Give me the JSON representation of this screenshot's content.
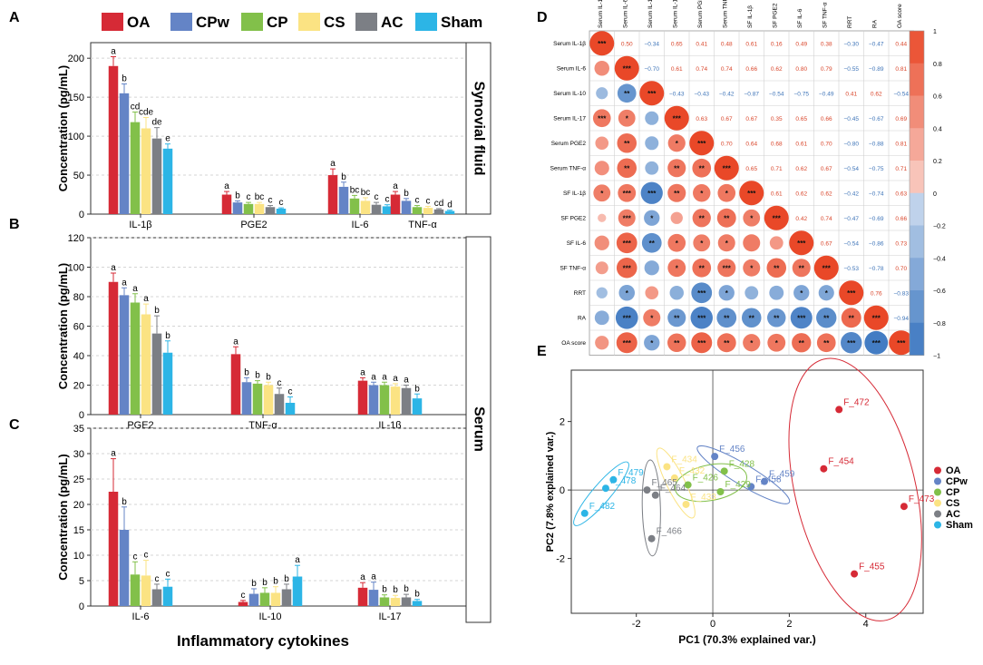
{
  "figure": {
    "panel_labels": [
      "A",
      "B",
      "C",
      "D",
      "E"
    ],
    "groups": [
      "OA",
      "CPw",
      "CP",
      "CS",
      "AC",
      "Sham"
    ],
    "group_colors": [
      "#d62a36",
      "#6484c6",
      "#82c04a",
      "#fbe383",
      "#7c7f85",
      "#2cb5e6"
    ],
    "x_caption": "Inflammatory cytokines"
  },
  "chart_data": [
    {
      "id": "A",
      "type": "bar",
      "side_label": "Synovial fluid",
      "ylabel": "Concentration (pg/mL)",
      "ylim": [
        0,
        220
      ],
      "yticks": [
        0,
        50,
        100,
        150,
        200
      ],
      "categories": [
        "IL-1β",
        "PGE2",
        "IL-6",
        "TNF-α"
      ],
      "series": [
        {
          "name": "OA",
          "values": [
            190,
            25,
            50,
            25
          ],
          "errors": [
            12,
            4,
            8,
            4
          ],
          "letters": [
            "a",
            "a",
            "a",
            "a"
          ]
        },
        {
          "name": "CPw",
          "values": [
            155,
            15,
            35,
            17
          ],
          "errors": [
            12,
            2,
            6,
            3
          ],
          "letters": [
            "b",
            "b",
            "b",
            "b"
          ]
        },
        {
          "name": "CP",
          "values": [
            118,
            13,
            20,
            9
          ],
          "errors": [
            13,
            2,
            4,
            2
          ],
          "letters": [
            "cd",
            "c",
            "bc",
            "c"
          ]
        },
        {
          "name": "CS",
          "values": [
            110,
            13,
            17,
            8
          ],
          "errors": [
            14,
            2,
            4,
            2
          ],
          "letters": [
            "cde",
            "bc",
            "bc",
            "c"
          ]
        },
        {
          "name": "AC",
          "values": [
            97,
            9,
            12,
            6
          ],
          "errors": [
            14,
            2,
            3,
            1
          ],
          "letters": [
            "de",
            "c",
            "c",
            "cd"
          ]
        },
        {
          "name": "Sham",
          "values": [
            84,
            7,
            10,
            4
          ],
          "errors": [
            6,
            1,
            2,
            1
          ],
          "letters": [
            "e",
            "c",
            "c",
            "d"
          ]
        }
      ]
    },
    {
      "id": "B",
      "type": "bar",
      "side_label": "Serum",
      "ylabel": "Concentration (pg/mL)",
      "ylim": [
        0,
        120
      ],
      "yticks": [
        0,
        20,
        40,
        60,
        80,
        100,
        120
      ],
      "categories": [
        "PGE2",
        "TNF-α",
        "IL-1β"
      ],
      "series": [
        {
          "name": "OA",
          "values": [
            90,
            41,
            23
          ],
          "errors": [
            6,
            5,
            2
          ],
          "letters": [
            "a",
            "a",
            "a"
          ]
        },
        {
          "name": "CPw",
          "values": [
            81,
            22,
            20
          ],
          "errors": [
            5,
            3,
            2
          ],
          "letters": [
            "a",
            "b",
            "a"
          ]
        },
        {
          "name": "CP",
          "values": [
            76,
            21,
            20
          ],
          "errors": [
            6,
            2,
            2
          ],
          "letters": [
            "a",
            "b",
            "a"
          ]
        },
        {
          "name": "CS",
          "values": [
            68,
            20,
            19
          ],
          "errors": [
            7,
            2,
            2
          ],
          "letters": [
            "a",
            "b",
            "a"
          ]
        },
        {
          "name": "AC",
          "values": [
            55,
            14,
            18
          ],
          "errors": [
            12,
            4,
            2
          ],
          "letters": [
            "b",
            "c",
            "a"
          ]
        },
        {
          "name": "Sham",
          "values": [
            42,
            8,
            11
          ],
          "errors": [
            8,
            4,
            3
          ],
          "letters": [
            "b",
            "c",
            "b"
          ]
        }
      ]
    },
    {
      "id": "C",
      "type": "bar",
      "ylabel": "Concentration (pg/mL)",
      "ylim": [
        0,
        35
      ],
      "yticks": [
        0,
        5,
        10,
        15,
        20,
        25,
        30,
        35
      ],
      "categories": [
        "IL-6",
        "IL-10",
        "IL-17"
      ],
      "series": [
        {
          "name": "OA",
          "values": [
            22.5,
            0.8,
            3.6
          ],
          "errors": [
            6.5,
            0.3,
            1.0
          ],
          "letters": [
            "a",
            "c",
            "a"
          ]
        },
        {
          "name": "CPw",
          "values": [
            15,
            2.4,
            3.2
          ],
          "errors": [
            4.5,
            1.0,
            1.5
          ],
          "letters": [
            "b",
            "b",
            "a"
          ]
        },
        {
          "name": "CP",
          "values": [
            6.2,
            2.6,
            1.7
          ],
          "errors": [
            2.5,
            1.0,
            0.5
          ],
          "letters": [
            "c",
            "b",
            "b"
          ]
        },
        {
          "name": "CS",
          "values": [
            6.0,
            2.6,
            1.6
          ],
          "errors": [
            3.0,
            1.2,
            0.5
          ],
          "letters": [
            "c",
            "b",
            "b"
          ]
        },
        {
          "name": "AC",
          "values": [
            3.3,
            3.3,
            1.7
          ],
          "errors": [
            1.0,
            1.0,
            0.6
          ],
          "letters": [
            "c",
            "b",
            "b"
          ]
        },
        {
          "name": "Sham",
          "values": [
            3.8,
            5.8,
            1.0
          ],
          "errors": [
            1.5,
            2.2,
            0.3
          ],
          "letters": [
            "c",
            "a",
            "b"
          ]
        }
      ]
    },
    {
      "id": "D",
      "type": "heatmap",
      "labels": [
        "Serum IL-1β",
        "Serum IL-6",
        "Serum IL-10",
        "Serum IL-17",
        "Serum PGE2",
        "Serum TNF-α",
        "SF IL-1β",
        "SF PGE2",
        "SF IL-6",
        "SF TNF-α",
        "RRT",
        "RA",
        "OA score"
      ],
      "upper": [
        [
          null,
          "0.50",
          "−0.34",
          "0.65",
          "0.41",
          "0.48",
          "0.61",
          "0.16",
          "0.49",
          "0.38",
          "−0.30",
          "−0.47",
          "0.44"
        ],
        [
          null,
          null,
          "−0.70",
          "0.61",
          "0.74",
          "0.74",
          "0.66",
          "0.62",
          "0.80",
          "0.79",
          "−0.55",
          "−0.89",
          "0.81"
        ],
        [
          null,
          null,
          null,
          "−0.43",
          "−0.43",
          "−0.42",
          "−0.87",
          "−0.54",
          "−0.75",
          "−0.49",
          "0.41",
          "0.62",
          "−0.54"
        ],
        [
          null,
          null,
          null,
          null,
          "0.63",
          "0.67",
          "0.67",
          "0.35",
          "0.65",
          "0.66",
          "−0.45",
          "−0.67",
          "0.69"
        ],
        [
          null,
          null,
          null,
          null,
          null,
          "0.70",
          "0.64",
          "0.68",
          "0.61",
          "0.70",
          "−0.80",
          "−0.88",
          "0.81"
        ],
        [
          null,
          null,
          null,
          null,
          null,
          null,
          "0.65",
          "0.71",
          "0.62",
          "0.67",
          "−0.54",
          "−0.75",
          "0.71"
        ],
        [
          null,
          null,
          null,
          null,
          null,
          null,
          null,
          "0.61",
          "0.62",
          "0.62",
          "−0.42",
          "−0.74",
          "0.63"
        ],
        [
          null,
          null,
          null,
          null,
          null,
          null,
          null,
          null,
          "0.42",
          "0.74",
          "−0.47",
          "−0.69",
          "0.66"
        ],
        [
          null,
          null,
          null,
          null,
          null,
          null,
          null,
          null,
          null,
          "0.67",
          "−0.54",
          "−0.86",
          "0.73"
        ],
        [
          null,
          null,
          null,
          null,
          null,
          null,
          null,
          null,
          null,
          null,
          "−0.53",
          "−0.78",
          "0.70"
        ],
        [
          null,
          null,
          null,
          null,
          null,
          null,
          null,
          null,
          null,
          null,
          null,
          "0.76",
          "−0.83"
        ],
        [
          null,
          null,
          null,
          null,
          null,
          null,
          null,
          null,
          null,
          null,
          null,
          null,
          "−0.94"
        ],
        [
          null,
          null,
          null,
          null,
          null,
          null,
          null,
          null,
          null,
          null,
          null,
          null,
          null
        ]
      ],
      "lower_sig": [
        [
          "***",
          "",
          "",
          "",
          "",
          "",
          "",
          "",
          "",
          "",
          "",
          "",
          ""
        ],
        [
          "",
          "***",
          "",
          "",
          "",
          "",
          "",
          "",
          "",
          "",
          "",
          "",
          ""
        ],
        [
          "",
          "**",
          "***",
          "",
          "",
          "",
          "",
          "",
          "",
          "",
          "",
          "",
          ""
        ],
        [
          "***",
          "*",
          "",
          "***",
          "",
          "",
          "",
          "",
          "",
          "",
          "",
          "",
          ""
        ],
        [
          "",
          "**",
          "",
          "*",
          "***",
          "",
          "",
          "",
          "",
          "",
          "",
          "",
          ""
        ],
        [
          "",
          "**",
          "",
          "**",
          "**",
          "***",
          "",
          "",
          "",
          "",
          "",
          "",
          ""
        ],
        [
          "*",
          "***",
          "***",
          "**",
          "*",
          "*",
          "***",
          "",
          "",
          "",
          "",
          "",
          ""
        ],
        [
          "",
          "***",
          "*",
          "",
          "**",
          "**",
          "*",
          "***",
          "",
          "",
          "",
          "",
          ""
        ],
        [
          "",
          "***",
          "**",
          "*",
          "*",
          "*",
          "",
          "",
          "***",
          "",
          "",
          "",
          ""
        ],
        [
          "",
          "***",
          "",
          "*",
          "**",
          "***",
          "*",
          "**",
          "**",
          "***",
          "",
          "",
          ""
        ],
        [
          "",
          "*",
          "",
          "",
          "***",
          "*",
          "",
          "",
          "*",
          "*",
          "***",
          "",
          ""
        ],
        [
          "",
          "***",
          "*",
          "**",
          "***",
          "**",
          "**",
          "**",
          "***",
          "**",
          "**",
          "***",
          ""
        ],
        [
          "",
          "***",
          "*",
          "**",
          "***",
          "**",
          "*",
          "*",
          "**",
          "**",
          "***",
          "***",
          "***"
        ]
      ],
      "colorbar_ticks": [
        "1",
        "0.8",
        "0.6",
        "0.4",
        "0.2",
        "0",
        "−0.2",
        "−0.4",
        "−0.6",
        "−0.8",
        "−1"
      ]
    },
    {
      "id": "E",
      "type": "scatter",
      "xlabel": "PC1 (70.3% explained var.)",
      "ylabel": "PC2 (7.8% explained var.)",
      "xlim": [
        -3.7,
        5.5
      ],
      "ylim": [
        -3.6,
        3.5
      ],
      "xticks": [
        -2,
        0,
        2,
        4
      ],
      "yticks": [
        -2,
        0,
        2
      ],
      "points": [
        {
          "group": "OA",
          "label": "F_472",
          "x": 3.3,
          "y": 2.35
        },
        {
          "group": "OA",
          "label": "F_454",
          "x": 2.9,
          "y": 0.62
        },
        {
          "group": "OA",
          "label": "F_473",
          "x": 5.0,
          "y": -0.48
        },
        {
          "group": "OA",
          "label": "F_455",
          "x": 3.7,
          "y": -2.45
        },
        {
          "group": "CPw",
          "label": "F_456",
          "x": 0.05,
          "y": 0.98
        },
        {
          "group": "CPw",
          "label": "F_459",
          "x": 1.35,
          "y": 0.25
        },
        {
          "group": "CPw",
          "label": "F_458",
          "x": 1.0,
          "y": 0.1
        },
        {
          "group": "CP",
          "label": "F_428",
          "x": 0.3,
          "y": 0.55
        },
        {
          "group": "CP",
          "label": "F_426",
          "x": -0.65,
          "y": 0.15
        },
        {
          "group": "CP",
          "label": "F_429",
          "x": 0.2,
          "y": -0.05
        },
        {
          "group": "CS",
          "label": "F_434",
          "x": -1.2,
          "y": 0.68
        },
        {
          "group": "CS",
          "label": "F_432",
          "x": -1.0,
          "y": 0.35
        },
        {
          "group": "CS",
          "label": "F_433",
          "x": -0.7,
          "y": -0.42
        },
        {
          "group": "AC",
          "label": "F_465",
          "x": -1.72,
          "y": 0.0
        },
        {
          "group": "AC",
          "label": "F_464",
          "x": -1.5,
          "y": -0.15
        },
        {
          "group": "AC",
          "label": "F_466",
          "x": -1.6,
          "y": -1.42
        },
        {
          "group": "Sham",
          "label": "F_479",
          "x": -2.6,
          "y": 0.3
        },
        {
          "group": "Sham",
          "label": "F_478",
          "x": -2.8,
          "y": 0.05
        },
        {
          "group": "Sham",
          "label": "F_482",
          "x": -3.35,
          "y": -0.68
        }
      ]
    }
  ]
}
